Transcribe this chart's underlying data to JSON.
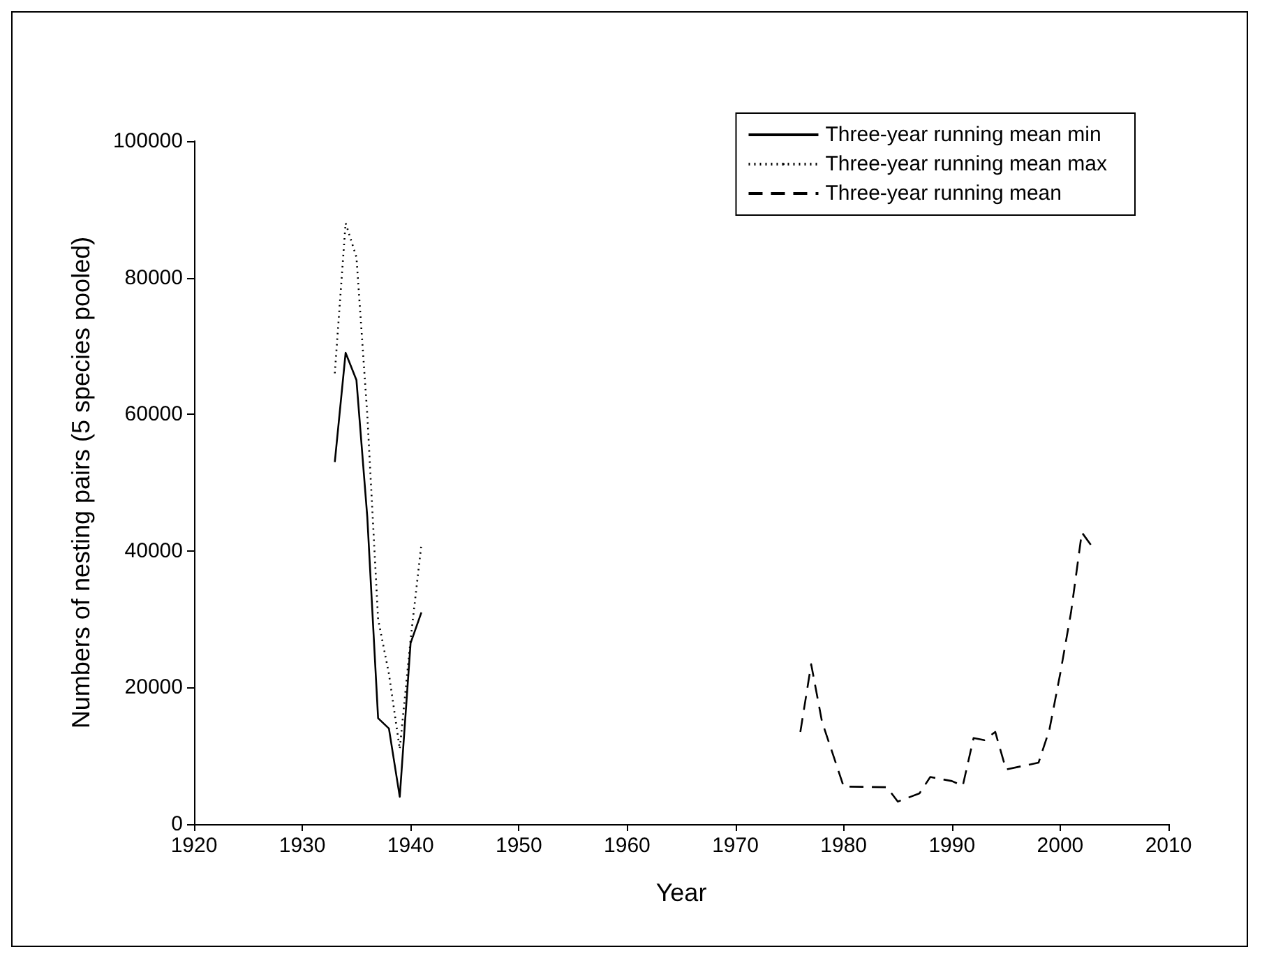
{
  "chart_data": {
    "type": "line",
    "xlabel": "Year",
    "ylabel": "Numbers of nesting pairs (5 species pooled)",
    "xlim": [
      1920,
      2010
    ],
    "xticks": [
      1920,
      1930,
      1940,
      1950,
      1960,
      1970,
      1980,
      1990,
      2000,
      2010
    ],
    "ylim": [
      0,
      100000
    ],
    "yticks": [
      0,
      20000,
      40000,
      60000,
      80000,
      100000
    ],
    "legend": "top right",
    "grid": false,
    "series": [
      {
        "name": "Three-year running mean min",
        "color": "#000000",
        "line_style": "solid",
        "x": [
          1933,
          1934,
          1935,
          1936,
          1937,
          1938,
          1939,
          1940,
          1941
        ],
        "values": [
          53000,
          69000,
          65000,
          45000,
          15500,
          14000,
          4000,
          26500,
          31000
        ]
      },
      {
        "name": "Three-year running mean max",
        "color": "#000000",
        "line_style": "dotted",
        "x": [
          1933,
          1934,
          1935,
          1936,
          1937,
          1938,
          1939,
          1940,
          1941
        ],
        "values": [
          66000,
          88000,
          83000,
          60000,
          30000,
          22000,
          11000,
          27000,
          41000
        ]
      },
      {
        "name": "Three-year running mean",
        "color": "#000000",
        "line_style": "dashed",
        "x": [
          1976,
          1977,
          1978,
          1980,
          1984,
          1985,
          1987,
          1988,
          1990,
          1991,
          1992,
          1993,
          1994,
          1995,
          1998,
          1999,
          2000,
          2001,
          2002,
          2003
        ],
        "values": [
          13500,
          23400,
          15000,
          5500,
          5400,
          3300,
          4500,
          6900,
          6300,
          5600,
          12600,
          12300,
          13500,
          8000,
          9000,
          13800,
          22000,
          31000,
          42700,
          40500
        ]
      }
    ]
  }
}
